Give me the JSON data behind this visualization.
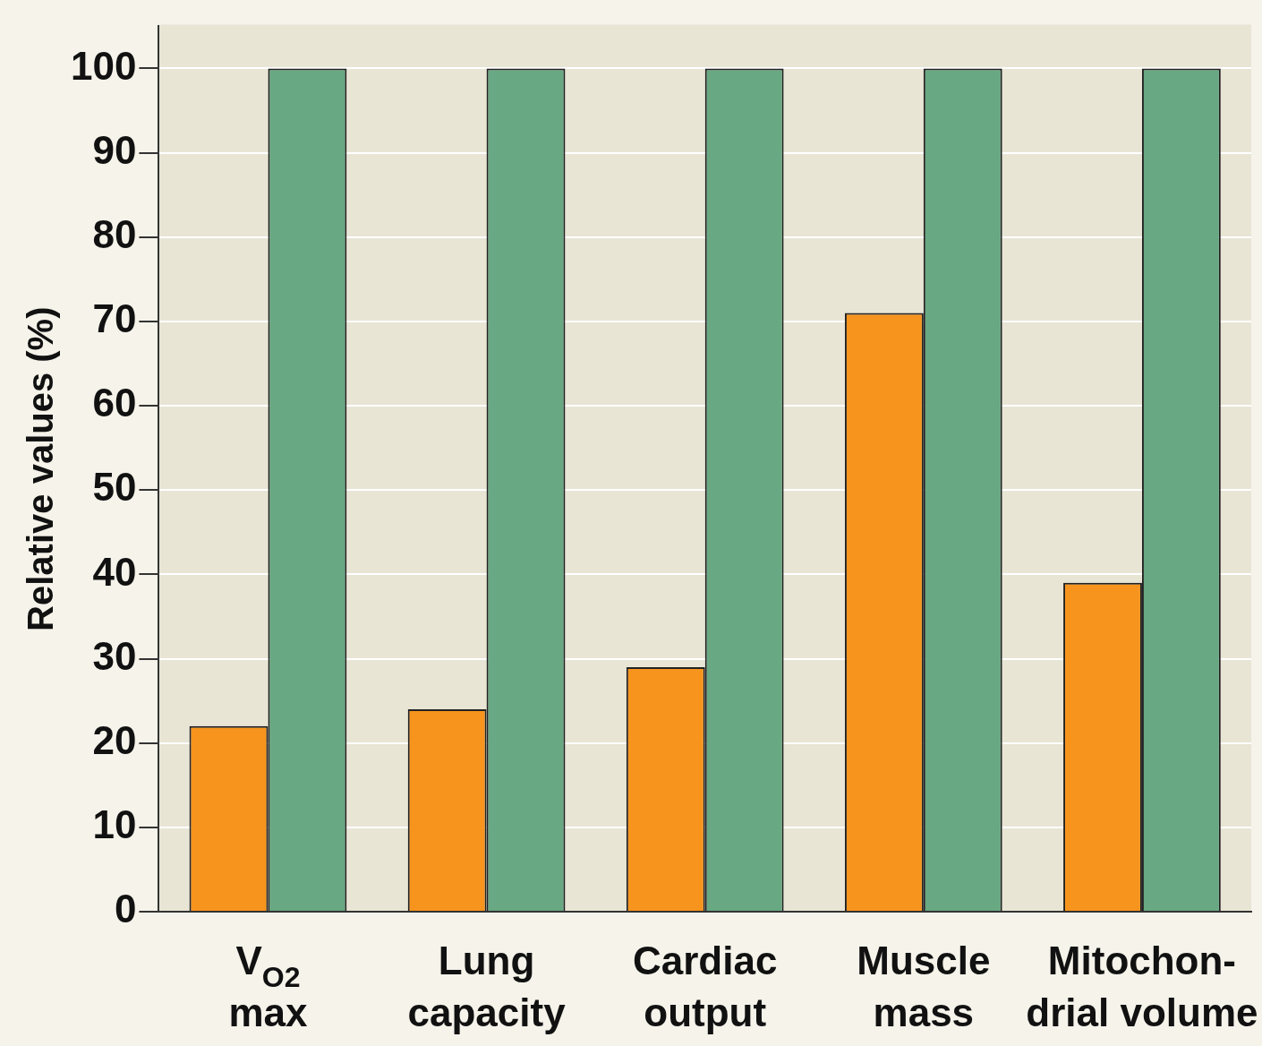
{
  "chart_data": {
    "type": "bar",
    "ylabel": "Relative values (%)",
    "categories": [
      "V$_{O2}$\nmax",
      "Lung\ncapacity",
      "Cardiac\noutput",
      "Muscle\nmass",
      "Mitochon-\ndrial volume"
    ],
    "series": [
      {
        "color": "#f7941d",
        "values": [
          22,
          24,
          29,
          71,
          39
        ]
      },
      {
        "color": "#68a882",
        "values": [
          100,
          100,
          100,
          100,
          100
        ]
      }
    ],
    "ylim": [
      0,
      105
    ],
    "yticks": [
      0,
      10,
      20,
      30,
      40,
      50,
      60,
      70,
      80,
      90,
      100
    ],
    "grid": "y",
    "legend": false
  }
}
